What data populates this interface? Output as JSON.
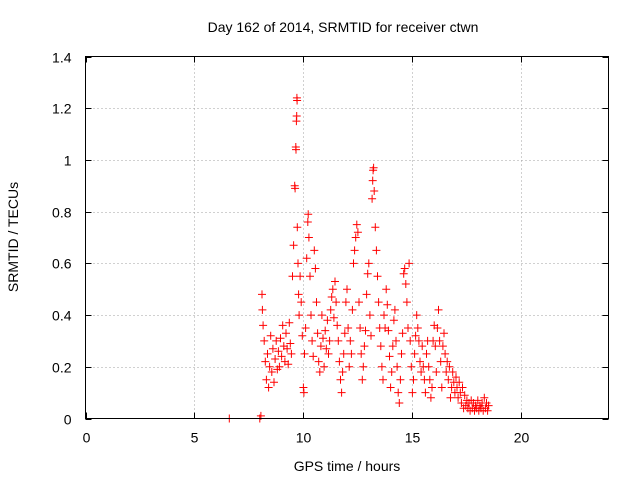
{
  "chart_data": {
    "type": "scatter",
    "title": "Day 162 of 2014, SRMTID for receiver ctwn",
    "xlabel": "GPS time / hours",
    "ylabel": "SRMTID / TECUs",
    "xlim": [
      0,
      24
    ],
    "ylim": [
      0,
      1.4
    ],
    "xticks": [
      0,
      5,
      10,
      15,
      20
    ],
    "xtick_labels": [
      "0",
      "5",
      "10",
      "15",
      "20"
    ],
    "yticks": [
      0,
      0.2,
      0.4,
      0.6,
      0.8,
      1,
      1.2,
      1.4
    ],
    "ytick_labels": [
      "0",
      "0.2",
      "0.4",
      "0.6",
      "0.8",
      "1",
      "1.2",
      "1.4"
    ],
    "grid": true,
    "marker": "+",
    "color": "#ff0000",
    "series": [
      {
        "name": "SRMTID",
        "points": [
          [
            6.6,
            0.0
          ],
          [
            8.0,
            0.0
          ],
          [
            8.05,
            0.01
          ],
          [
            8.1,
            0.48
          ],
          [
            8.12,
            0.42
          ],
          [
            8.15,
            0.36
          ],
          [
            8.2,
            0.3
          ],
          [
            8.25,
            0.22
          ],
          [
            8.3,
            0.15
          ],
          [
            8.35,
            0.25
          ],
          [
            8.4,
            0.12
          ],
          [
            8.45,
            0.2
          ],
          [
            8.5,
            0.32
          ],
          [
            8.55,
            0.18
          ],
          [
            8.6,
            0.27
          ],
          [
            8.65,
            0.14
          ],
          [
            8.7,
            0.23
          ],
          [
            8.75,
            0.3
          ],
          [
            8.8,
            0.19
          ],
          [
            8.85,
            0.26
          ],
          [
            8.9,
            0.2
          ],
          [
            8.95,
            0.31
          ],
          [
            9.0,
            0.24
          ],
          [
            9.05,
            0.36
          ],
          [
            9.1,
            0.28
          ],
          [
            9.15,
            0.22
          ],
          [
            9.2,
            0.33
          ],
          [
            9.25,
            0.27
          ],
          [
            9.3,
            0.21
          ],
          [
            9.35,
            0.37
          ],
          [
            9.4,
            0.29
          ],
          [
            9.45,
            0.25
          ],
          [
            9.5,
            0.55
          ],
          [
            9.55,
            0.67
          ],
          [
            9.6,
            0.9
          ],
          [
            9.62,
            0.89
          ],
          [
            9.65,
            1.05
          ],
          [
            9.66,
            1.04
          ],
          [
            9.68,
            1.15
          ],
          [
            9.69,
            1.17
          ],
          [
            9.7,
            1.24
          ],
          [
            9.71,
            1.23
          ],
          [
            9.72,
            0.74
          ],
          [
            9.75,
            0.6
          ],
          [
            9.78,
            0.48
          ],
          [
            9.8,
            0.4
          ],
          [
            9.85,
            0.55
          ],
          [
            9.9,
            0.45
          ],
          [
            9.95,
            0.32
          ],
          [
            10.0,
            0.12
          ],
          [
            10.02,
            0.1
          ],
          [
            10.05,
            0.25
          ],
          [
            10.1,
            0.35
          ],
          [
            10.15,
            0.62
          ],
          [
            10.2,
            0.76
          ],
          [
            10.22,
            0.79
          ],
          [
            10.25,
            0.7
          ],
          [
            10.3,
            0.55
          ],
          [
            10.35,
            0.4
          ],
          [
            10.4,
            0.3
          ],
          [
            10.45,
            0.24
          ],
          [
            10.5,
            0.65
          ],
          [
            10.55,
            0.58
          ],
          [
            10.6,
            0.45
          ],
          [
            10.65,
            0.33
          ],
          [
            10.7,
            0.22
          ],
          [
            10.75,
            0.18
          ],
          [
            10.8,
            0.28
          ],
          [
            10.85,
            0.4
          ],
          [
            10.9,
            0.31
          ],
          [
            10.95,
            0.2
          ],
          [
            11.0,
            0.34
          ],
          [
            11.05,
            0.27
          ],
          [
            11.1,
            0.38
          ],
          [
            11.15,
            0.25
          ],
          [
            11.2,
            0.3
          ],
          [
            11.25,
            0.42
          ],
          [
            11.3,
            0.47
          ],
          [
            11.35,
            0.5
          ],
          [
            11.4,
            0.39
          ],
          [
            11.45,
            0.53
          ],
          [
            11.5,
            0.45
          ],
          [
            11.55,
            0.36
          ],
          [
            11.6,
            0.3
          ],
          [
            11.65,
            0.22
          ],
          [
            11.7,
            0.15
          ],
          [
            11.75,
            0.1
          ],
          [
            11.8,
            0.18
          ],
          [
            11.85,
            0.25
          ],
          [
            11.9,
            0.33
          ],
          [
            11.95,
            0.45
          ],
          [
            12.0,
            0.5
          ],
          [
            12.05,
            0.35
          ],
          [
            12.1,
            0.2
          ],
          [
            12.15,
            0.3
          ],
          [
            12.2,
            0.25
          ],
          [
            12.25,
            0.42
          ],
          [
            12.3,
            0.6
          ],
          [
            12.35,
            0.65
          ],
          [
            12.4,
            0.7
          ],
          [
            12.45,
            0.75
          ],
          [
            12.5,
            0.72
          ],
          [
            12.55,
            0.45
          ],
          [
            12.6,
            0.35
          ],
          [
            12.65,
            0.25
          ],
          [
            12.7,
            0.15
          ],
          [
            12.75,
            0.2
          ],
          [
            12.8,
            0.28
          ],
          [
            12.85,
            0.34
          ],
          [
            12.9,
            0.48
          ],
          [
            12.95,
            0.56
          ],
          [
            13.0,
            0.6
          ],
          [
            13.05,
            0.4
          ],
          [
            13.1,
            0.32
          ],
          [
            13.15,
            0.85
          ],
          [
            13.18,
            0.92
          ],
          [
            13.2,
            0.96
          ],
          [
            13.22,
            0.97
          ],
          [
            13.25,
            0.88
          ],
          [
            13.3,
            0.74
          ],
          [
            13.35,
            0.65
          ],
          [
            13.4,
            0.55
          ],
          [
            13.45,
            0.45
          ],
          [
            13.5,
            0.35
          ],
          [
            13.55,
            0.28
          ],
          [
            13.6,
            0.2
          ],
          [
            13.65,
            0.15
          ],
          [
            13.7,
            0.4
          ],
          [
            13.75,
            0.35
          ],
          [
            13.8,
            0.5
          ],
          [
            13.85,
            0.44
          ],
          [
            13.9,
            0.34
          ],
          [
            13.95,
            0.24
          ],
          [
            14.0,
            0.12
          ],
          [
            14.05,
            0.18
          ],
          [
            14.1,
            0.28
          ],
          [
            14.15,
            0.38
          ],
          [
            14.2,
            0.42
          ],
          [
            14.25,
            0.3
          ],
          [
            14.3,
            0.2
          ],
          [
            14.35,
            0.1
          ],
          [
            14.4,
            0.06
          ],
          [
            14.45,
            0.15
          ],
          [
            14.5,
            0.25
          ],
          [
            14.55,
            0.33
          ],
          [
            14.6,
            0.56
          ],
          [
            14.65,
            0.58
          ],
          [
            14.7,
            0.52
          ],
          [
            14.75,
            0.45
          ],
          [
            14.8,
            0.35
          ],
          [
            14.85,
            0.6
          ],
          [
            14.9,
            0.3
          ],
          [
            14.95,
            0.2
          ],
          [
            15.0,
            0.1
          ],
          [
            15.05,
            0.15
          ],
          [
            15.1,
            0.25
          ],
          [
            15.15,
            0.32
          ],
          [
            15.2,
            0.4
          ],
          [
            15.25,
            0.35
          ],
          [
            15.3,
            0.3
          ],
          [
            15.35,
            0.22
          ],
          [
            15.4,
            0.18
          ],
          [
            15.45,
            0.28
          ],
          [
            15.5,
            0.2
          ],
          [
            15.55,
            0.15
          ],
          [
            15.6,
            0.1
          ],
          [
            15.65,
            0.25
          ],
          [
            15.7,
            0.3
          ],
          [
            15.75,
            0.2
          ],
          [
            15.8,
            0.15
          ],
          [
            15.85,
            0.08
          ],
          [
            15.9,
            0.12
          ],
          [
            15.95,
            0.3
          ],
          [
            16.0,
            0.36
          ],
          [
            16.05,
            0.28
          ],
          [
            16.1,
            0.18
          ],
          [
            16.15,
            0.35
          ],
          [
            16.2,
            0.42
          ],
          [
            16.25,
            0.3
          ],
          [
            16.3,
            0.22
          ],
          [
            16.35,
            0.12
          ],
          [
            16.4,
            0.28
          ],
          [
            16.45,
            0.33
          ],
          [
            16.5,
            0.25
          ],
          [
            16.55,
            0.18
          ],
          [
            16.6,
            0.22
          ],
          [
            16.65,
            0.15
          ],
          [
            16.7,
            0.2
          ],
          [
            16.75,
            0.08
          ],
          [
            16.8,
            0.12
          ],
          [
            16.85,
            0.18
          ],
          [
            16.9,
            0.14
          ],
          [
            16.95,
            0.1
          ],
          [
            17.0,
            0.16
          ],
          [
            17.05,
            0.12
          ],
          [
            17.1,
            0.08
          ],
          [
            17.15,
            0.14
          ],
          [
            17.2,
            0.1
          ],
          [
            17.25,
            0.06
          ],
          [
            17.3,
            0.12
          ],
          [
            17.35,
            0.04
          ],
          [
            17.4,
            0.09
          ],
          [
            17.45,
            0.05
          ],
          [
            17.5,
            0.07
          ],
          [
            17.55,
            0.04
          ],
          [
            17.6,
            0.06
          ],
          [
            17.65,
            0.03
          ],
          [
            17.7,
            0.07
          ],
          [
            17.75,
            0.04
          ],
          [
            17.8,
            0.06
          ],
          [
            17.85,
            0.03
          ],
          [
            17.9,
            0.05
          ],
          [
            17.95,
            0.04
          ],
          [
            18.0,
            0.07
          ],
          [
            18.05,
            0.03
          ],
          [
            18.1,
            0.05
          ],
          [
            18.15,
            0.04
          ],
          [
            18.2,
            0.06
          ],
          [
            18.25,
            0.03
          ],
          [
            18.3,
            0.08
          ],
          [
            18.35,
            0.04
          ],
          [
            18.4,
            0.06
          ],
          [
            18.45,
            0.03
          ],
          [
            18.5,
            0.05
          ]
        ]
      }
    ]
  }
}
